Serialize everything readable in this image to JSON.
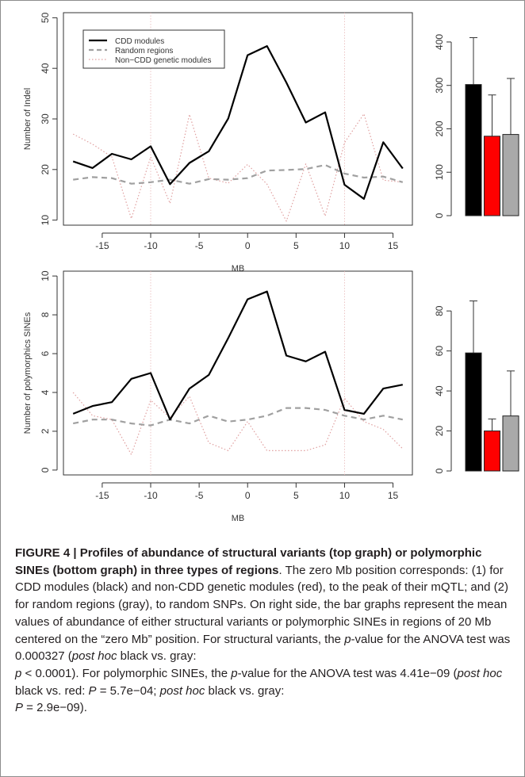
{
  "chart_data": [
    {
      "type": "line",
      "xlabel": "MB",
      "ylabel": "Number of Indel",
      "xticks": [
        "-15",
        "-10",
        "-5",
        "0",
        "5",
        "10",
        "15"
      ],
      "yticks": [
        "10",
        "20",
        "30",
        "40",
        "50"
      ],
      "xlim": [
        -19,
        17
      ],
      "ylim": [
        9,
        51
      ],
      "x": [
        -18,
        -16,
        -14,
        -12,
        -10,
        -8,
        -6,
        -4,
        -2,
        0,
        2,
        4,
        6,
        8,
        10,
        12,
        14,
        16
      ],
      "vlines": [
        -10,
        10
      ],
      "series": [
        {
          "name": "CDD modules",
          "style": "solid",
          "color": "#000000",
          "values": [
            21.6,
            20.3,
            23.1,
            22.0,
            24.6,
            17.1,
            21.3,
            23.6,
            30.1,
            42.6,
            44.4,
            37.2,
            29.3,
            31.3,
            17.0,
            14.2,
            25.4,
            20.2
          ]
        },
        {
          "name": "Random regions",
          "style": "dashed",
          "color": "#a0a0a0",
          "values": [
            18.0,
            18.5,
            18.3,
            17.2,
            17.5,
            18.0,
            17.2,
            18.1,
            18.0,
            18.3,
            19.8,
            19.9,
            20.1,
            20.9,
            19.2,
            18.4,
            18.6,
            17.5
          ]
        },
        {
          "name": "Non−CDD genetic modules",
          "style": "dotted",
          "color": "#e0a0a0",
          "values": [
            27.0,
            25.0,
            22.5,
            10.3,
            22.5,
            13.3,
            30.9,
            18.3,
            17.3,
            21.0,
            17.1,
            9.8,
            21.1,
            10.8,
            25.3,
            31.0,
            17.9,
            17.5
          ]
        }
      ]
    },
    {
      "type": "bar",
      "ylim": [
        0,
        420
      ],
      "yticks": [
        "0",
        "100",
        "200",
        "300",
        "400"
      ],
      "values": [
        302,
        183,
        187
      ],
      "errors": [
        410,
        278,
        316
      ],
      "colors": [
        "#000000",
        "#ff0000",
        "#a9a9a9"
      ]
    },
    {
      "type": "line",
      "xlabel": "MB",
      "ylabel": "Number of polymorphics SINEs",
      "xticks": [
        "-15",
        "-10",
        "-5",
        "0",
        "5",
        "10",
        "15"
      ],
      "yticks": [
        "0",
        "2",
        "4",
        "6",
        "8",
        "10"
      ],
      "xlim": [
        -19,
        17
      ],
      "ylim": [
        -0.25,
        10.25
      ],
      "x": [
        -18,
        -16,
        -14,
        -12,
        -10,
        -8,
        -6,
        -4,
        -2,
        0,
        2,
        4,
        6,
        8,
        10,
        12,
        14,
        16
      ],
      "vlines": [
        -10,
        10
      ],
      "series": [
        {
          "name": "CDD modules",
          "style": "solid",
          "color": "#000000",
          "values": [
            2.9,
            3.3,
            3.5,
            4.7,
            5.0,
            2.6,
            4.2,
            4.9,
            6.8,
            8.8,
            9.2,
            5.9,
            5.6,
            6.1,
            3.1,
            2.9,
            4.2,
            4.4
          ]
        },
        {
          "name": "Random regions",
          "style": "dashed",
          "color": "#a0a0a0",
          "values": [
            2.4,
            2.6,
            2.6,
            2.4,
            2.3,
            2.6,
            2.4,
            2.8,
            2.5,
            2.6,
            2.8,
            3.2,
            3.2,
            3.1,
            2.8,
            2.6,
            2.8,
            2.6
          ]
        },
        {
          "name": "Non−CDD genetic modules",
          "style": "dotted",
          "color": "#e0a0a0",
          "values": [
            4.0,
            2.8,
            2.6,
            0.8,
            3.6,
            2.7,
            3.8,
            1.4,
            1.0,
            2.5,
            1.0,
            1.0,
            1.0,
            1.3,
            3.7,
            2.5,
            2.1,
            1.1
          ]
        }
      ]
    },
    {
      "type": "bar",
      "ylim": [
        0,
        88
      ],
      "yticks": [
        "0",
        "20",
        "40",
        "60",
        "80"
      ],
      "values": [
        59,
        20,
        27.5
      ],
      "errors": [
        85,
        26,
        50
      ],
      "colors": [
        "#000000",
        "#ff0000",
        "#a9a9a9"
      ]
    }
  ],
  "caption": {
    "bold": "FIGURE 4 | Profiles of abundance of structural variants (top graph) or polymorphic SINEs (bottom graph) in three types of regions",
    "text1": ". The zero Mb position corresponds: (1) for CDD modules (black) and non-CDD genetic modules (red), to the peak of their mQTL; and (2) for random regions (gray), to random SNPs. On right side, the bar graphs represent the mean values of abundance of either structural variants or polymorphic SINEs in regions of 20 Mb centered on the “zero Mb” position. For structural variants, the ",
    "p1": "p",
    "text2": "-value for the ANOVA test was 0.000327 (",
    "ph1": "post hoc",
    "text3": " black vs. gray: ",
    "p2": "p",
    "text4": " < 0.0001). For polymorphic SINEs, the ",
    "p3": "p",
    "text5": "-value for the ANOVA test was 4.41e−09 (",
    "ph2": "post hoc",
    "text6": " black vs. red: ",
    "P1": "P",
    "text7": " = 5.7e−04; ",
    "ph3": "post hoc",
    "text8": " black vs. gray: ",
    "P2": "P",
    "text9": " = 2.9e−09)."
  }
}
